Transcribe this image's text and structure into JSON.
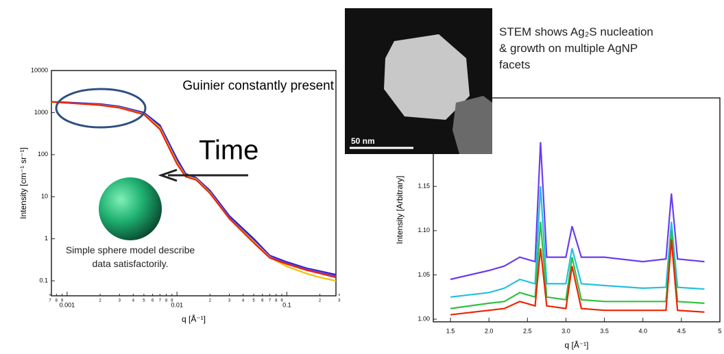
{
  "chart_data": [
    {
      "type": "line",
      "x_log": true,
      "y_log": true,
      "x_label": "q [Å⁻¹]",
      "y_label": "Intensity [cm⁻¹ sr⁻¹]",
      "annotations": [
        "Guinier constantly present",
        "Time",
        "Simple sphere model describe data satisfactorily."
      ],
      "x": [
        0.00072,
        0.001,
        0.002,
        0.003,
        0.005,
        0.007,
        0.01,
        0.012,
        0.015,
        0.02,
        0.03,
        0.05,
        0.07,
        0.1,
        0.15,
        0.2,
        0.28
      ],
      "series": [
        {
          "color": "#2222cc",
          "values": [
            1800,
            1750,
            1600,
            1400,
            1000,
            500,
            80,
            35,
            28,
            14,
            3.5,
            1,
            0.4,
            0.28,
            0.2,
            0.17,
            0.14
          ]
        },
        {
          "color": "#7a3fd0",
          "values": [
            1780,
            1720,
            1560,
            1350,
            950,
            450,
            70,
            32,
            27,
            13,
            3.2,
            0.9,
            0.38,
            0.26,
            0.19,
            0.16,
            0.13
          ]
        },
        {
          "color": "#f0c000",
          "values": [
            1760,
            1700,
            1520,
            1320,
            920,
            430,
            65,
            31,
            26,
            12.5,
            3,
            0.85,
            0.36,
            0.22,
            0.15,
            0.12,
            0.1
          ]
        },
        {
          "color": "#ee2200",
          "values": [
            1800,
            1700,
            1500,
            1300,
            900,
            400,
            60,
            30,
            25,
            12,
            3,
            0.8,
            0.35,
            0.25,
            0.18,
            0.15,
            0.12
          ]
        }
      ],
      "xlim": [
        0.00072,
        0.28
      ],
      "ylim": [
        0.044,
        10000
      ],
      "xticks": [
        {
          "value": 0.0007,
          "label": "7"
        },
        {
          "value": 0.0008,
          "label": "8"
        },
        {
          "value": 0.0009,
          "label": "9"
        },
        0.001,
        {
          "value": 0.002,
          "label": "2"
        },
        {
          "value": 0.003,
          "label": "3"
        },
        {
          "value": 0.004,
          "label": "4"
        },
        {
          "value": 0.005,
          "label": "5"
        },
        {
          "value": 0.006,
          "label": "6"
        },
        {
          "value": 0.007,
          "label": "7"
        },
        {
          "value": 0.008,
          "label": "8"
        },
        {
          "value": 0.009,
          "label": "9"
        },
        0.01,
        {
          "value": 0.02,
          "label": "2"
        },
        {
          "value": 0.03,
          "label": "3"
        },
        {
          "value": 0.04,
          "label": "4"
        },
        {
          "value": 0.05,
          "label": "5"
        },
        {
          "value": 0.06,
          "label": "6"
        },
        {
          "value": 0.07,
          "label": "7"
        },
        {
          "value": 0.08,
          "label": "8"
        },
        {
          "value": 0.09,
          "label": "9"
        },
        0.1,
        {
          "value": 0.2,
          "label": "2"
        },
        {
          "value": 0.3,
          "label": "3"
        }
      ],
      "yticks": [
        0.1,
        1,
        10,
        100,
        1000,
        10000
      ]
    },
    {
      "type": "line",
      "x_label": "q [Å⁻¹]",
      "y_label": "Intensity [Arbitrary]",
      "caption": "STEM shows Ag₂S nucleation & growth on multiple AgNP facets",
      "scale_bar": "50 nm",
      "x": [
        1.5,
        2.0,
        2.2,
        2.4,
        2.6,
        2.67,
        2.75,
        3.0,
        3.08,
        3.2,
        3.5,
        4.0,
        4.3,
        4.37,
        4.45,
        4.8
      ],
      "series": [
        {
          "color": "#6a3cf0",
          "values": [
            1.045,
            1.055,
            1.06,
            1.07,
            1.065,
            1.2,
            1.07,
            1.07,
            1.105,
            1.07,
            1.07,
            1.065,
            1.068,
            1.142,
            1.068,
            1.065
          ]
        },
        {
          "color": "#22c0e0",
          "values": [
            1.025,
            1.03,
            1.035,
            1.045,
            1.04,
            1.15,
            1.04,
            1.04,
            1.08,
            1.04,
            1.038,
            1.035,
            1.036,
            1.11,
            1.036,
            1.034
          ]
        },
        {
          "color": "#30c040",
          "values": [
            1.012,
            1.018,
            1.02,
            1.03,
            1.025,
            1.11,
            1.025,
            1.022,
            1.07,
            1.022,
            1.02,
            1.02,
            1.02,
            1.1,
            1.02,
            1.018
          ]
        },
        {
          "color": "#ee2200",
          "values": [
            1.005,
            1.01,
            1.012,
            1.02,
            1.015,
            1.08,
            1.015,
            1.012,
            1.06,
            1.012,
            1.01,
            1.01,
            1.01,
            1.09,
            1.01,
            1.008
          ]
        }
      ],
      "xlim": [
        1.277,
        5.0
      ],
      "ylim": [
        0.997,
        1.25
      ],
      "xticks": [
        1.5,
        {
          "value": 2,
          "label": "2.0"
        },
        2.5,
        {
          "value": 3,
          "label": "3.0"
        },
        3.5,
        {
          "value": 4,
          "label": "4.0"
        },
        4.5,
        5
      ],
      "yticks": [
        {
          "value": 1,
          "label": "1.00"
        },
        1.05,
        {
          "value": 1.1,
          "label": "1.10"
        },
        1.15
      ]
    }
  ]
}
